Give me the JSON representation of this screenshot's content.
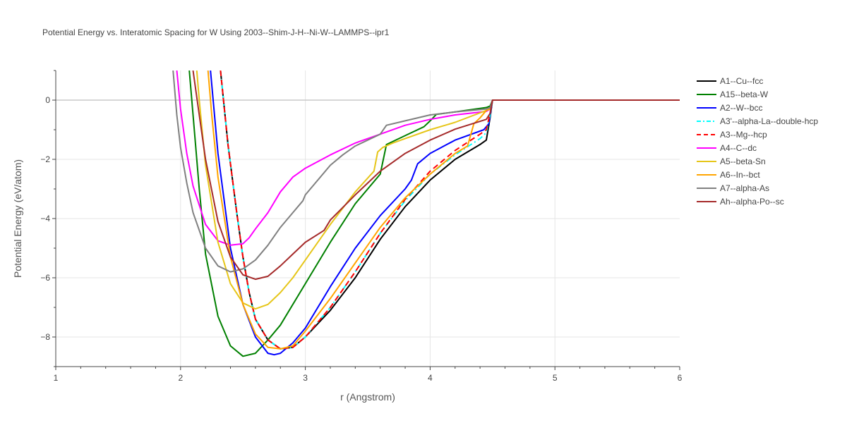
{
  "chart_data": {
    "type": "line",
    "title": "Potential Energy vs. Interatomic Spacing for W Using 2003--Shim-J-H--Ni-W--LAMMPS--ipr1",
    "xlabel": "r (Angstrom)",
    "ylabel": "Potential Energy (eV/atom)",
    "xlim": [
      1,
      6
    ],
    "ylim": [
      -9,
      1
    ],
    "xticks": [
      1,
      2,
      3,
      4,
      5,
      6
    ],
    "yticks": [
      -8,
      -6,
      -4,
      -2,
      0
    ],
    "grid": true,
    "legend_position": "right",
    "series": [
      {
        "name": "A1--Cu--fcc",
        "color": "#000000",
        "dash": "solid",
        "x": [
          2.32,
          2.38,
          2.45,
          2.5,
          2.55,
          2.6,
          2.7,
          2.8,
          2.9,
          3.0,
          3.2,
          3.4,
          3.6,
          3.8,
          4.0,
          4.2,
          4.4,
          4.45,
          4.48,
          4.5,
          6.0
        ],
        "y": [
          1.0,
          -1.5,
          -3.8,
          -5.3,
          -6.5,
          -7.4,
          -8.1,
          -8.4,
          -8.35,
          -8.0,
          -7.1,
          -6.0,
          -4.7,
          -3.6,
          -2.7,
          -2.0,
          -1.5,
          -1.35,
          -0.6,
          0.0,
          0.0
        ]
      },
      {
        "name": "A15--beta-W",
        "color": "#008000",
        "dash": "solid",
        "x": [
          2.07,
          2.1,
          2.15,
          2.2,
          2.3,
          2.4,
          2.5,
          2.6,
          2.7,
          2.8,
          3.0,
          3.2,
          3.4,
          3.6,
          3.65,
          3.8,
          3.95,
          4.0,
          4.05,
          4.2,
          4.45,
          4.48,
          4.5,
          6.0
        ],
        "y": [
          1.0,
          -0.5,
          -3.0,
          -5.2,
          -7.3,
          -8.3,
          -8.65,
          -8.55,
          -8.1,
          -7.6,
          -6.2,
          -4.8,
          -3.5,
          -2.5,
          -1.5,
          -1.2,
          -0.9,
          -0.7,
          -0.48,
          -0.4,
          -0.25,
          -0.2,
          0.0,
          0.0
        ]
      },
      {
        "name": "A2--W--bcc",
        "color": "#0000ff",
        "dash": "solid",
        "x": [
          2.24,
          2.3,
          2.4,
          2.5,
          2.6,
          2.7,
          2.75,
          2.8,
          2.9,
          3.0,
          3.2,
          3.4,
          3.6,
          3.8,
          3.85,
          3.9,
          4.0,
          4.2,
          4.43,
          4.47,
          4.5,
          6.0
        ],
        "y": [
          1.0,
          -1.8,
          -5.0,
          -6.9,
          -8.0,
          -8.55,
          -8.6,
          -8.55,
          -8.2,
          -7.7,
          -6.3,
          -5.0,
          -3.9,
          -3.0,
          -2.7,
          -2.15,
          -1.8,
          -1.35,
          -1.0,
          -0.8,
          0.0,
          0.0
        ]
      },
      {
        "name": "A3'--alpha-La--double-hcp",
        "color": "#00ffff",
        "dash": "dashdot",
        "x": [
          2.32,
          2.38,
          2.45,
          2.5,
          2.55,
          2.6,
          2.7,
          2.8,
          2.9,
          3.0,
          3.2,
          3.4,
          3.6,
          3.8,
          4.0,
          4.2,
          4.4,
          4.45,
          4.48,
          4.5,
          6.0
        ],
        "y": [
          1.0,
          -1.5,
          -3.8,
          -5.3,
          -6.5,
          -7.4,
          -8.1,
          -8.4,
          -8.35,
          -8.0,
          -7.0,
          -5.8,
          -4.5,
          -3.4,
          -2.5,
          -1.85,
          -1.3,
          -1.1,
          -0.5,
          0.0,
          0.0
        ]
      },
      {
        "name": "A3--Mg--hcp",
        "color": "#ff0000",
        "dash": "dash",
        "x": [
          2.32,
          2.38,
          2.45,
          2.5,
          2.55,
          2.6,
          2.7,
          2.8,
          2.9,
          3.0,
          3.2,
          3.4,
          3.6,
          3.8,
          4.0,
          4.2,
          4.4,
          4.45,
          4.48,
          4.5,
          6.0
        ],
        "y": [
          1.0,
          -1.5,
          -3.8,
          -5.3,
          -6.5,
          -7.4,
          -8.1,
          -8.4,
          -8.35,
          -8.0,
          -7.0,
          -5.8,
          -4.5,
          -3.35,
          -2.4,
          -1.7,
          -1.15,
          -1.0,
          -0.45,
          0.0,
          0.0
        ]
      },
      {
        "name": "A4--C--dc",
        "color": "#ff00ff",
        "dash": "solid",
        "x": [
          1.97,
          2.0,
          2.05,
          2.1,
          2.2,
          2.3,
          2.4,
          2.5,
          2.55,
          2.6,
          2.7,
          2.8,
          2.9,
          3.0,
          3.2,
          3.4,
          3.6,
          3.8,
          4.0,
          4.2,
          4.45,
          4.48,
          4.5,
          6.0
        ],
        "y": [
          1.0,
          -0.3,
          -1.8,
          -2.9,
          -4.2,
          -4.75,
          -4.9,
          -4.85,
          -4.65,
          -4.35,
          -3.8,
          -3.1,
          -2.6,
          -2.3,
          -1.85,
          -1.45,
          -1.15,
          -0.85,
          -0.65,
          -0.5,
          -0.38,
          -0.3,
          0.0,
          0.0
        ]
      },
      {
        "name": "A5--beta-Sn",
        "color": "#e6c619",
        "dash": "solid",
        "x": [
          2.13,
          2.15,
          2.2,
          2.3,
          2.4,
          2.5,
          2.6,
          2.7,
          2.8,
          2.9,
          3.0,
          3.2,
          3.4,
          3.55,
          3.58,
          3.62,
          3.7,
          3.8,
          4.0,
          4.2,
          4.45,
          4.48,
          4.5,
          6.0
        ],
        "y": [
          1.0,
          0.0,
          -2.2,
          -4.8,
          -6.2,
          -6.85,
          -7.05,
          -6.9,
          -6.5,
          -6.0,
          -5.4,
          -4.2,
          -3.1,
          -2.4,
          -1.75,
          -1.6,
          -1.45,
          -1.3,
          -1.0,
          -0.75,
          -0.35,
          -0.3,
          0.0,
          0.0
        ]
      },
      {
        "name": "A6--In--bct",
        "color": "#ffa500",
        "dash": "solid",
        "x": [
          2.22,
          2.25,
          2.3,
          2.4,
          2.5,
          2.6,
          2.7,
          2.8,
          2.9,
          3.0,
          3.2,
          3.4,
          3.6,
          3.8,
          4.0,
          4.2,
          4.3,
          4.35,
          4.4,
          4.45,
          4.48,
          4.5,
          6.0
        ],
        "y": [
          1.0,
          -0.5,
          -2.6,
          -5.3,
          -6.9,
          -7.9,
          -8.35,
          -8.4,
          -8.3,
          -7.8,
          -6.7,
          -5.5,
          -4.3,
          -3.3,
          -2.5,
          -1.8,
          -1.55,
          -0.8,
          -0.6,
          -0.35,
          -0.3,
          0.0,
          0.0
        ]
      },
      {
        "name": "A7--alpha-As",
        "color": "#808080",
        "dash": "solid",
        "x": [
          1.94,
          1.97,
          2.0,
          2.05,
          2.1,
          2.2,
          2.3,
          2.4,
          2.5,
          2.6,
          2.7,
          2.8,
          2.9,
          2.98,
          3.0,
          3.1,
          3.2,
          3.3,
          3.4,
          3.5,
          3.6,
          3.65,
          3.8,
          4.0,
          4.2,
          4.45,
          4.48,
          4.5,
          6.0
        ],
        "y": [
          1.0,
          -0.5,
          -1.6,
          -2.8,
          -3.8,
          -5.0,
          -5.6,
          -5.8,
          -5.7,
          -5.4,
          -4.9,
          -4.3,
          -3.8,
          -3.4,
          -3.2,
          -2.7,
          -2.2,
          -1.85,
          -1.55,
          -1.35,
          -1.15,
          -0.85,
          -0.7,
          -0.5,
          -0.4,
          -0.3,
          -0.25,
          0.0,
          0.0
        ]
      },
      {
        "name": "Ah--alpha-Po--sc",
        "color": "#a52a2a",
        "dash": "solid",
        "x": [
          2.1,
          2.15,
          2.2,
          2.3,
          2.4,
          2.5,
          2.6,
          2.7,
          2.8,
          2.9,
          3.0,
          3.15,
          3.2,
          3.4,
          3.6,
          3.8,
          4.0,
          4.2,
          4.45,
          4.48,
          4.5,
          6.0
        ],
        "y": [
          1.0,
          -0.5,
          -2.0,
          -4.1,
          -5.3,
          -5.9,
          -6.05,
          -5.95,
          -5.6,
          -5.2,
          -4.8,
          -4.4,
          -4.05,
          -3.2,
          -2.4,
          -1.8,
          -1.35,
          -0.98,
          -0.65,
          -0.45,
          0.0,
          0.0
        ]
      }
    ]
  }
}
